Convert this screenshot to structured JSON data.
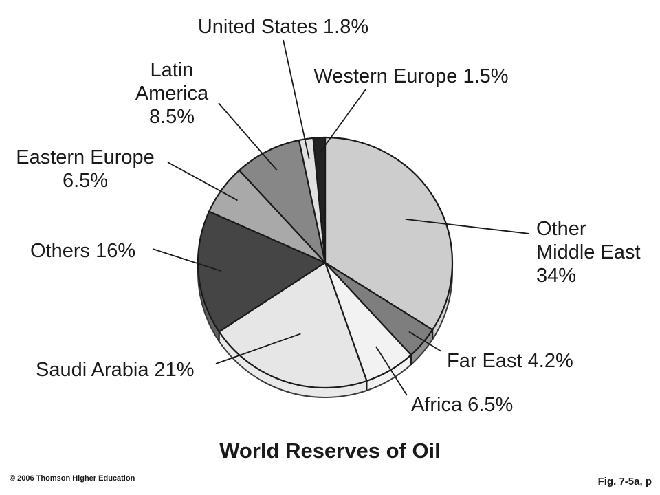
{
  "chart_data": {
    "type": "pie",
    "title": "World Reserves of Oil",
    "slices": [
      {
        "label": "Other Middle East",
        "percent_label": "34%",
        "value": 34,
        "color": "#cdcdcd"
      },
      {
        "label": "Far East",
        "percent_label": "4.2%",
        "value": 4.2,
        "color": "#7e7e7e"
      },
      {
        "label": "Africa",
        "percent_label": "6.5%",
        "value": 6.5,
        "color": "#f2f2f2"
      },
      {
        "label": "Saudi Arabia",
        "percent_label": "21%",
        "value": 21,
        "color": "#e6e6e6"
      },
      {
        "label": "Others",
        "percent_label": "16%",
        "value": 16,
        "color": "#454545"
      },
      {
        "label": "Eastern Europe",
        "percent_label": "6.5%",
        "value": 6.5,
        "color": "#a9a9a9"
      },
      {
        "label": "Latin America",
        "percent_label": "8.5%",
        "value": 8.5,
        "color": "#878787"
      },
      {
        "label": "United States",
        "percent_label": "1.8%",
        "value": 1.8,
        "color": "#e0e0e0"
      },
      {
        "label": "Western Europe",
        "percent_label": "1.5%",
        "value": 1.5,
        "color": "#222222"
      }
    ]
  },
  "figure": {
    "title": "World Reserves of Oil",
    "copyright": "© 2006 Thomson Higher Education",
    "fig_ref": "Fig. 7-5a, p"
  }
}
